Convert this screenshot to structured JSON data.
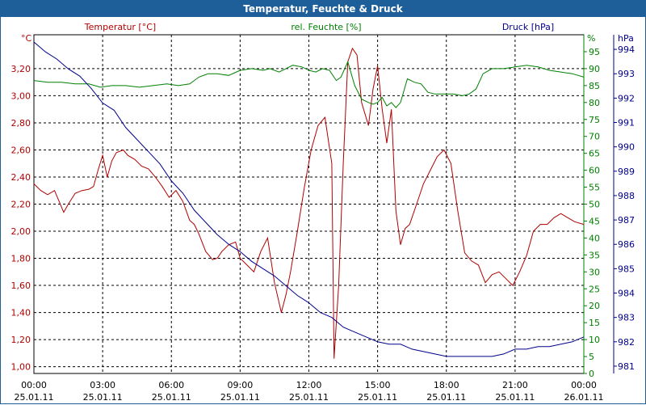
{
  "window": {
    "title": "Temperatur, Feuchte & Druck"
  },
  "chart_data": {
    "type": "line",
    "title": "Temperatur, Feuchte & Druck",
    "x_tick_labels": [
      [
        "00:00",
        "25.01.11"
      ],
      [
        "03:00",
        "25.01.11"
      ],
      [
        "06:00",
        "25.01.11"
      ],
      [
        "09:00",
        "25.01.11"
      ],
      [
        "12:00",
        "25.01.11"
      ],
      [
        "15:00",
        "25.01.11"
      ],
      [
        "18:00",
        "25.01.11"
      ],
      [
        "21:00",
        "25.01.11"
      ],
      [
        "00:00",
        "26.01.11"
      ]
    ],
    "xlim": [
      0,
      24
    ],
    "grid": true,
    "axes": {
      "temperature": {
        "label": "Temperatur [°C]",
        "unit": "°C",
        "color": "#b00000",
        "ylim": [
          0.95,
          3.45
        ],
        "ticks": [
          "1,00",
          "1,20",
          "1,40",
          "1,60",
          "1,80",
          "2,00",
          "2,20",
          "2,40",
          "2,60",
          "2,80",
          "3,00",
          "3,20"
        ],
        "tick_values": [
          1.0,
          1.2,
          1.4,
          1.6,
          1.8,
          2.0,
          2.2,
          2.4,
          2.6,
          2.8,
          3.0,
          3.2
        ]
      },
      "humidity": {
        "label": "rel. Feuchte [%]",
        "unit": "%",
        "color": "#008000",
        "ylim": [
          0,
          100
        ],
        "ticks": [
          "0",
          "5",
          "10",
          "15",
          "20",
          "25",
          "30",
          "35",
          "40",
          "45",
          "50",
          "55",
          "60",
          "65",
          "70",
          "75",
          "80",
          "85",
          "90",
          "95"
        ],
        "tick_values": [
          0,
          5,
          10,
          15,
          20,
          25,
          30,
          35,
          40,
          45,
          50,
          55,
          60,
          65,
          70,
          75,
          80,
          85,
          90,
          95
        ]
      },
      "pressure": {
        "label": "Druck [hPa]",
        "unit": "hPa",
        "color": "#00008b",
        "ylim": [
          980.7,
          994.6
        ],
        "ticks": [
          "981",
          "982",
          "983",
          "984",
          "985",
          "986",
          "987",
          "988",
          "989",
          "990",
          "991",
          "992",
          "993",
          "994"
        ],
        "tick_values": [
          981,
          982,
          983,
          984,
          985,
          986,
          987,
          988,
          989,
          990,
          991,
          992,
          993,
          994
        ]
      }
    },
    "series": [
      {
        "name": "Temperatur [°C]",
        "axis": "temperature",
        "color": "#b00000",
        "x": [
          0,
          0.3,
          0.6,
          0.9,
          1.1,
          1.3,
          1.5,
          1.8,
          2.1,
          2.4,
          2.6,
          2.8,
          3.0,
          3.2,
          3.4,
          3.6,
          3.9,
          4.1,
          4.4,
          4.7,
          5.0,
          5.3,
          5.6,
          5.9,
          6.2,
          6.5,
          6.8,
          7.0,
          7.2,
          7.5,
          7.8,
          8.0,
          8.2,
          8.5,
          8.8,
          9.0,
          9.3,
          9.6,
          9.9,
          10.2,
          10.5,
          10.8,
          11.0,
          11.2,
          11.5,
          11.8,
          12.1,
          12.4,
          12.7,
          13.0,
          13.1,
          13.3,
          13.5,
          13.7,
          13.9,
          14.1,
          14.3,
          14.6,
          14.8,
          15.0,
          15.2,
          15.4,
          15.6,
          15.8,
          16.0,
          16.2,
          16.4,
          16.7,
          17.0,
          17.3,
          17.6,
          17.9,
          18.2,
          18.5,
          18.8,
          19.1,
          19.4,
          19.7,
          20.0,
          20.3,
          20.6,
          20.9,
          21.2,
          21.5,
          21.8,
          22.1,
          22.4,
          22.7,
          23.0,
          23.3,
          23.6,
          24.0
        ],
        "values": [
          2.35,
          2.3,
          2.27,
          2.3,
          2.22,
          2.14,
          2.2,
          2.28,
          2.3,
          2.31,
          2.33,
          2.45,
          2.56,
          2.4,
          2.52,
          2.58,
          2.6,
          2.56,
          2.53,
          2.48,
          2.46,
          2.4,
          2.33,
          2.25,
          2.3,
          2.22,
          2.08,
          2.05,
          1.98,
          1.85,
          1.79,
          1.8,
          1.85,
          1.9,
          1.92,
          1.8,
          1.75,
          1.7,
          1.85,
          1.95,
          1.62,
          1.4,
          1.53,
          1.7,
          2.0,
          2.32,
          2.6,
          2.78,
          2.84,
          2.5,
          1.06,
          1.6,
          2.5,
          3.25,
          3.35,
          3.3,
          2.95,
          2.78,
          3.05,
          3.22,
          2.9,
          2.65,
          2.9,
          2.15,
          1.9,
          2.02,
          2.05,
          2.2,
          2.35,
          2.45,
          2.55,
          2.6,
          2.5,
          2.15,
          1.84,
          1.78,
          1.75,
          1.62,
          1.68,
          1.7,
          1.65,
          1.6,
          1.7,
          1.82,
          2.0,
          2.05,
          2.05,
          2.1,
          2.13,
          2.1,
          2.07,
          2.05
        ]
      },
      {
        "name": "rel. Feuchte [%]",
        "axis": "humidity",
        "color": "#008000",
        "x": [
          0,
          0.6,
          1.2,
          1.8,
          2.4,
          2.9,
          3.4,
          4.0,
          4.6,
          5.2,
          5.8,
          6.3,
          6.8,
          7.2,
          7.6,
          8.0,
          8.5,
          9.0,
          9.5,
          10.0,
          10.3,
          10.7,
          11.0,
          11.3,
          11.7,
          12.0,
          12.3,
          12.6,
          12.9,
          13.2,
          13.4,
          13.7,
          14.0,
          14.3,
          14.6,
          14.8,
          15.0,
          15.2,
          15.4,
          15.6,
          15.8,
          16.0,
          16.3,
          16.6,
          16.9,
          17.2,
          17.5,
          17.9,
          18.3,
          18.7,
          19.0,
          19.3,
          19.6,
          20.0,
          20.5,
          21.0,
          21.5,
          22.0,
          22.5,
          23.0,
          23.5,
          24.0
        ],
        "values": [
          86.5,
          86.0,
          86.0,
          85.5,
          85.5,
          84.5,
          85.0,
          85.0,
          84.5,
          85.0,
          85.5,
          85.0,
          85.5,
          87.5,
          88.5,
          88.5,
          88.0,
          89.5,
          90.0,
          89.5,
          90.0,
          89.0,
          90.0,
          91.0,
          90.5,
          89.5,
          89.0,
          90.0,
          89.5,
          86.5,
          87.5,
          92.0,
          85.0,
          81.0,
          80.0,
          79.5,
          80.0,
          81.5,
          79.0,
          80.0,
          78.5,
          80.0,
          87.0,
          86.0,
          85.5,
          83.0,
          82.5,
          82.5,
          82.5,
          82.0,
          82.5,
          84.0,
          88.5,
          90.0,
          90.0,
          90.5,
          91.0,
          90.5,
          89.5,
          89.0,
          88.5,
          87.5
        ]
      },
      {
        "name": "Druck [hPa]",
        "axis": "pressure",
        "color": "#00008b",
        "x": [
          0,
          0.5,
          1.0,
          1.5,
          2.0,
          2.5,
          3.0,
          3.5,
          4.0,
          4.5,
          5.0,
          5.5,
          6.0,
          6.5,
          7.0,
          7.5,
          8.0,
          8.5,
          9.0,
          9.5,
          10.0,
          10.5,
          11.0,
          11.5,
          12.0,
          12.5,
          13.0,
          13.5,
          14.0,
          14.5,
          15.0,
          15.5,
          16.0,
          16.5,
          17.0,
          17.5,
          18.0,
          18.5,
          19.0,
          19.5,
          20.0,
          20.5,
          21.0,
          21.5,
          22.0,
          22.5,
          23.0,
          23.5,
          24.0
        ],
        "values": [
          994.3,
          993.9,
          993.6,
          993.2,
          992.9,
          992.4,
          991.8,
          991.5,
          990.8,
          990.3,
          989.8,
          989.3,
          988.6,
          988.1,
          987.4,
          986.9,
          986.4,
          986.0,
          985.7,
          985.3,
          985.0,
          984.7,
          984.3,
          983.9,
          983.6,
          983.2,
          983.0,
          982.6,
          982.4,
          982.2,
          982.0,
          981.9,
          981.9,
          981.7,
          981.6,
          981.5,
          981.4,
          981.4,
          981.4,
          981.4,
          981.4,
          981.5,
          981.7,
          981.7,
          981.8,
          981.8,
          981.9,
          982.0,
          982.2
        ]
      }
    ]
  }
}
